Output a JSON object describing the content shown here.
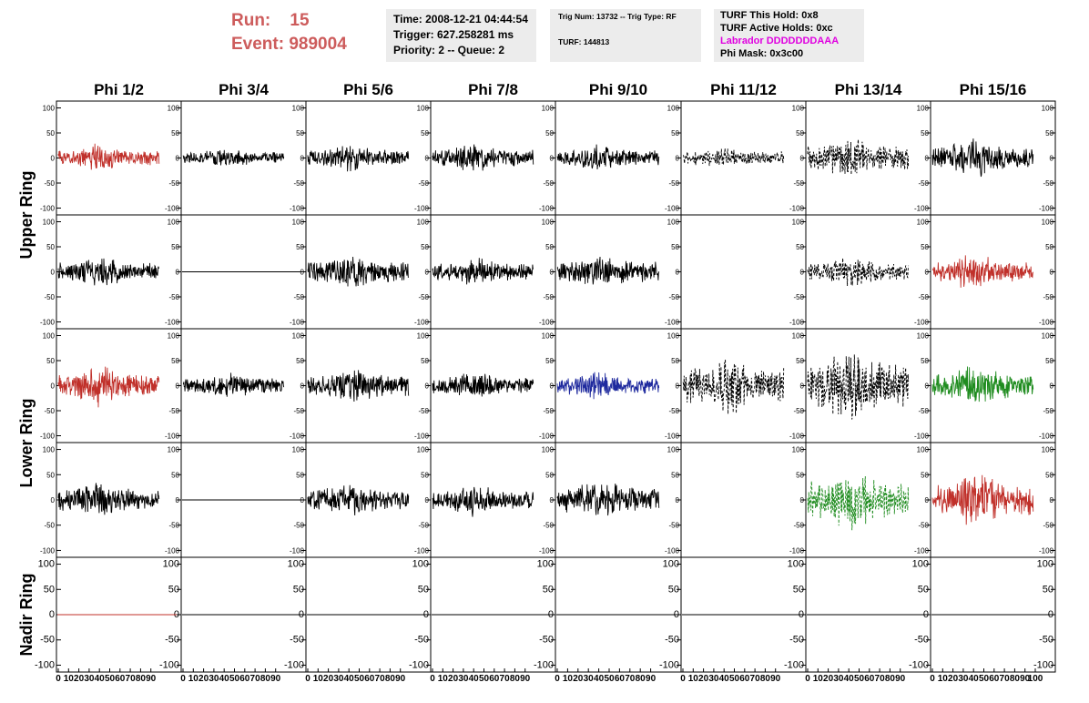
{
  "header": {
    "run_label": "Run:",
    "run_value": "15",
    "event_label": "Event:",
    "event_value": "989004"
  },
  "time_box": {
    "time": "Time: 2008-12-21 04:44:54",
    "trigger": "Trigger: 627.258281 ms",
    "priority": "Priority: 2 -- Queue: 2"
  },
  "trig_box": {
    "trig": "Trig Num: 13732 -- Trig Type: RF",
    "turf": "TURF: 144813"
  },
  "turf_box": {
    "this_hold": "TURF This Hold: 0x8",
    "active_holds": "TURF Active Holds: 0xc",
    "labrador": "Labrador DDDDDDDAAA",
    "phi_mask": "Phi Mask: 0x3c00"
  },
  "colors": {
    "header_red": "#cd5c5c",
    "labrador_magenta": "#e000e0",
    "trace_black": "#000000",
    "trace_red": "#c0302a",
    "trace_blue": "#1f2a9e",
    "trace_green": "#1f8c1f",
    "box_bg": "#ececec"
  },
  "chart_data": {
    "type": "line",
    "columns": [
      "Phi 1/2",
      "Phi 3/4",
      "Phi 5/6",
      "Phi 7/8",
      "Phi 9/10",
      "Phi 11/12",
      "Phi 13/14",
      "Phi 15/16"
    ],
    "ring_labels": [
      {
        "label": "Upper Ring",
        "rows": [
          0,
          1
        ]
      },
      {
        "label": "Lower Ring",
        "rows": [
          2,
          3
        ]
      },
      {
        "label": "Nadir Ring",
        "rows": [
          4
        ]
      }
    ],
    "ylim": [
      -110,
      110
    ],
    "xlim": [
      0,
      100
    ],
    "y_ticks": [
      "100",
      "50",
      "0",
      "-50",
      "-100"
    ],
    "y_tick_values": [
      100,
      50,
      0,
      -50,
      -100
    ],
    "x_ticks": [
      "0",
      "10",
      "20",
      "30",
      "40",
      "50",
      "60",
      "70",
      "80",
      "90",
      "100"
    ],
    "x_tick_values": [
      0,
      10,
      20,
      30,
      40,
      50,
      60,
      70,
      80,
      90,
      100
    ],
    "rows": [
      [
        {
          "color": "red",
          "style": "solid",
          "amplitude": 30
        },
        {
          "color": "black",
          "style": "solid",
          "amplitude": 22
        },
        {
          "color": "black",
          "style": "solid",
          "amplitude": 30
        },
        {
          "color": "black",
          "style": "solid",
          "amplitude": 32
        },
        {
          "color": "black",
          "style": "solid",
          "amplitude": 30
        },
        {
          "color": "black",
          "style": "dashed",
          "amplitude": 25
        },
        {
          "color": "black",
          "style": "dashed",
          "amplitude": 45
        },
        {
          "color": "black",
          "style": "solid",
          "amplitude": 42
        }
      ],
      [
        {
          "color": "black",
          "style": "solid",
          "amplitude": 35
        },
        {
          "color": "black",
          "style": "flat",
          "amplitude": 0
        },
        {
          "color": "black",
          "style": "solid",
          "amplitude": 40
        },
        {
          "color": "black",
          "style": "solid",
          "amplitude": 32
        },
        {
          "color": "black",
          "style": "solid",
          "amplitude": 38
        },
        {
          "color": "black",
          "style": "none",
          "amplitude": 0
        },
        {
          "color": "black",
          "style": "dashed",
          "amplitude": 35
        },
        {
          "color": "red",
          "style": "solid",
          "amplitude": 40
        }
      ],
      [
        {
          "color": "red",
          "style": "solid",
          "amplitude": 45
        },
        {
          "color": "black",
          "style": "solid",
          "amplitude": 30
        },
        {
          "color": "black",
          "style": "solid",
          "amplitude": 40
        },
        {
          "color": "black",
          "style": "solid",
          "amplitude": 32
        },
        {
          "color": "blue",
          "style": "solid",
          "amplitude": 32
        },
        {
          "color": "black",
          "style": "dashed",
          "amplitude": 70
        },
        {
          "color": "black",
          "style": "dashed",
          "amplitude": 85
        },
        {
          "color": "green",
          "style": "solid",
          "amplitude": 45
        }
      ],
      [
        {
          "color": "black",
          "style": "solid",
          "amplitude": 40
        },
        {
          "color": "black",
          "style": "flat",
          "amplitude": 0
        },
        {
          "color": "black",
          "style": "solid",
          "amplitude": 40
        },
        {
          "color": "black",
          "style": "solid",
          "amplitude": 35
        },
        {
          "color": "black",
          "style": "solid",
          "amplitude": 45
        },
        {
          "color": "black",
          "style": "none",
          "amplitude": 0
        },
        {
          "color": "green",
          "style": "dashed",
          "amplitude": 70
        },
        {
          "color": "red",
          "style": "solid",
          "amplitude": 60
        }
      ],
      [
        {
          "color": "red",
          "style": "flat",
          "amplitude": 0
        },
        {
          "color": "black",
          "style": "flat",
          "amplitude": 0
        },
        {
          "color": "black",
          "style": "flat",
          "amplitude": 0
        },
        {
          "color": "black",
          "style": "flat",
          "amplitude": 0
        },
        {
          "color": "black",
          "style": "flat",
          "amplitude": 0
        },
        {
          "color": "black",
          "style": "flat",
          "amplitude": 0
        },
        {
          "color": "black",
          "style": "flat",
          "amplitude": 0
        },
        {
          "color": "black",
          "style": "flat",
          "amplitude": 0
        }
      ]
    ]
  }
}
